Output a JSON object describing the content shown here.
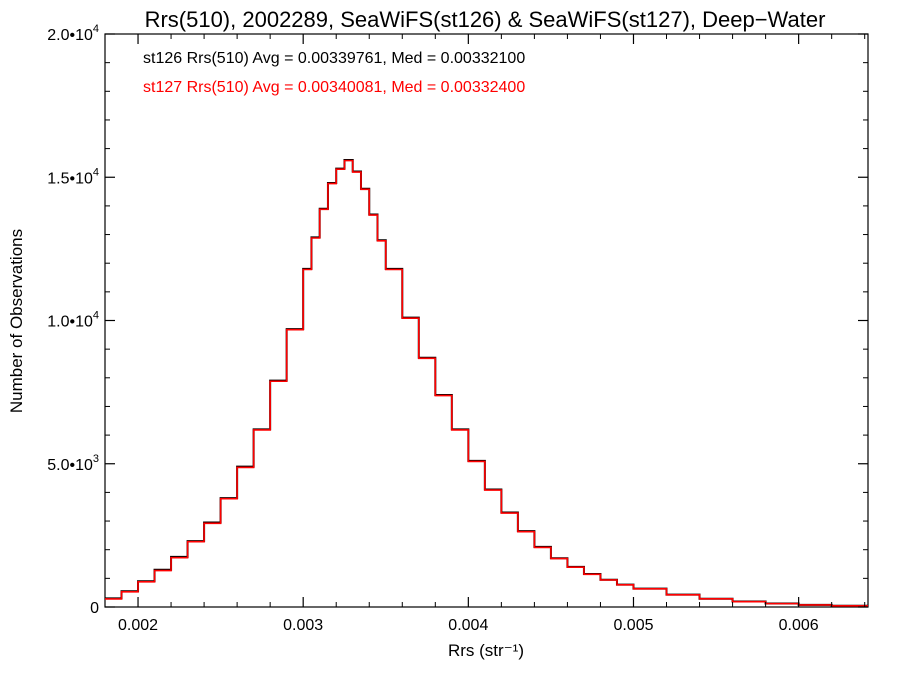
{
  "chart_data": {
    "type": "step",
    "title": "Rrs(510), 2002289, SeaWiFS(st126) & SeaWiFS(st127), Deep−Water",
    "xlabel": "Rrs (str⁻¹)",
    "ylabel": "Number of Observations",
    "xlim": [
      0.0018,
      0.00642
    ],
    "ylim": [
      0,
      20000
    ],
    "grid": false,
    "x_ticks": [
      {
        "value": 0.002,
        "label": "0.002"
      },
      {
        "value": 0.003,
        "label": "0.003"
      },
      {
        "value": 0.004,
        "label": "0.004"
      },
      {
        "value": 0.005,
        "label": "0.005"
      },
      {
        "value": 0.006,
        "label": "0.006"
      }
    ],
    "y_ticks": [
      {
        "value": 0,
        "label": "0",
        "exp": ""
      },
      {
        "value": 5000,
        "label": "5.0•10",
        "exp": "3"
      },
      {
        "value": 10000,
        "label": "1.0•10",
        "exp": "4"
      },
      {
        "value": 15000,
        "label": "1.5•10",
        "exp": "4"
      },
      {
        "value": 20000,
        "label": "2.0•10",
        "exp": "4"
      }
    ],
    "annotations": [
      {
        "text": "st126 Rrs(510) Avg = 0.00339761, Med = 0.00332100",
        "color": "#000000"
      },
      {
        "text": "st127 Rrs(510) Avg = 0.00340081, Med = 0.00332400",
        "color": "#ff0000"
      }
    ],
    "series": [
      {
        "color": "#000000",
        "x": [
          0.0018,
          0.0019,
          0.002,
          0.0021,
          0.0022,
          0.0023,
          0.0024,
          0.0025,
          0.0026,
          0.0027,
          0.0028,
          0.0029,
          0.003,
          0.00305,
          0.0031,
          0.00315,
          0.0032,
          0.00325,
          0.0033,
          0.00335,
          0.0034,
          0.00345,
          0.0035,
          0.0036,
          0.0037,
          0.0038,
          0.0039,
          0.004,
          0.0041,
          0.0042,
          0.0043,
          0.0044,
          0.0045,
          0.0046,
          0.0047,
          0.0048,
          0.0049,
          0.005,
          0.0052,
          0.0054,
          0.0056,
          0.0058,
          0.006,
          0.0062,
          0.00642
        ],
        "y": [
          300,
          550,
          900,
          1300,
          1750,
          2300,
          2950,
          3800,
          4900,
          6200,
          7900,
          9700,
          11800,
          12900,
          13900,
          14800,
          15300,
          15600,
          15200,
          14600,
          13700,
          12800,
          11800,
          10100,
          8700,
          7400,
          6200,
          5100,
          4100,
          3300,
          2650,
          2100,
          1700,
          1400,
          1150,
          950,
          780,
          640,
          430,
          290,
          190,
          120,
          75,
          45,
          20
        ]
      },
      {
        "color": "#ff0000",
        "x": [
          0.0018,
          0.0019,
          0.002,
          0.0021,
          0.0022,
          0.0023,
          0.0024,
          0.0025,
          0.0026,
          0.0027,
          0.0028,
          0.0029,
          0.003,
          0.00305,
          0.0031,
          0.00315,
          0.0032,
          0.00325,
          0.0033,
          0.00335,
          0.0034,
          0.00345,
          0.0035,
          0.0036,
          0.0037,
          0.0038,
          0.0039,
          0.004,
          0.0041,
          0.0042,
          0.0043,
          0.0044,
          0.0045,
          0.0046,
          0.0047,
          0.0048,
          0.0049,
          0.005,
          0.0052,
          0.0054,
          0.0056,
          0.0058,
          0.006,
          0.0062,
          0.00642
        ],
        "y": [
          280,
          530,
          880,
          1270,
          1720,
          2280,
          2920,
          3780,
          4870,
          6180,
          7880,
          9680,
          11780,
          12880,
          13880,
          14780,
          15280,
          15580,
          15180,
          14580,
          13680,
          12780,
          11780,
          10080,
          8680,
          7380,
          6180,
          5080,
          4080,
          3280,
          2630,
          2080,
          1690,
          1390,
          1140,
          945,
          775,
          635,
          425,
          285,
          185,
          118,
          72,
          42,
          18
        ]
      }
    ]
  }
}
